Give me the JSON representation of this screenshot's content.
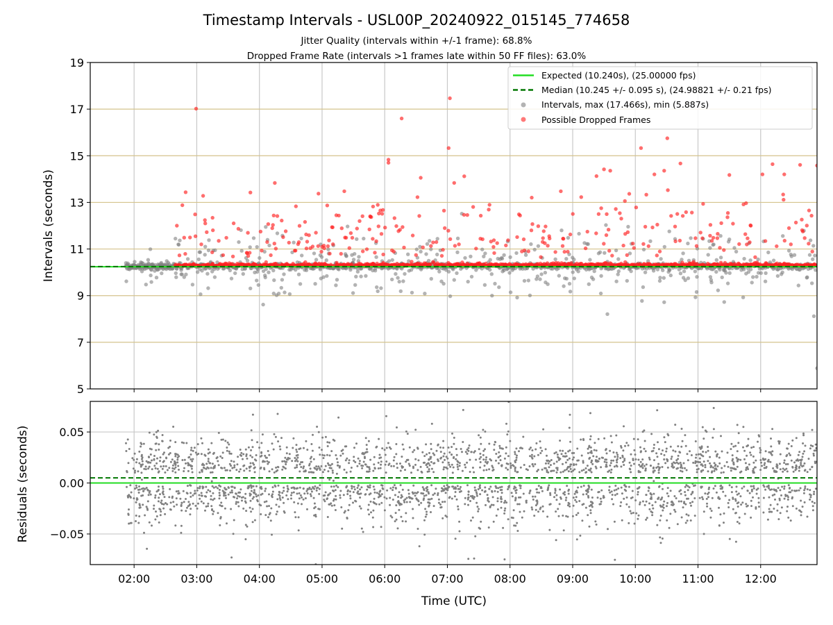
{
  "chart_data": [
    {
      "type": "scatter",
      "title": "Timestamp Intervals - USL00P_20240922_015145_774658",
      "subtitle_lines": [
        "Jitter Quality (intervals within +/-1 frame): 68.8%",
        "Dropped Frame Rate (intervals >1 frames late within 50 FF files): 63.0%"
      ],
      "ylabel": "Intervals (seconds)",
      "xlabel": "",
      "xlim_hours": [
        1.3,
        12.9
      ],
      "ylim": [
        5,
        19
      ],
      "yticks": [
        5,
        7,
        9,
        11,
        13,
        15,
        17,
        19
      ],
      "ytick_labels": [
        "5",
        "7",
        "9",
        "11",
        "13",
        "15",
        "17",
        "19"
      ],
      "hgrid_color": "#d4c38c",
      "reference_lines": [
        {
          "label": "Expected (10.240s), (25.00000 fps)",
          "value": 10.24,
          "style": "solid",
          "color": "#22dd22"
        },
        {
          "label": "Median (10.245 +/- 0.095 s), (24.98821 +/- 0.21 fps)",
          "value": 10.245,
          "style": "dashed",
          "color": "#007700"
        }
      ],
      "series": [
        {
          "name": "Intervals, max (17.466s), min (5.887s)",
          "color": "#808080",
          "max": 17.466,
          "min": 5.887
        },
        {
          "name": "Possible Dropped Frames",
          "color": "#ff2020"
        }
      ],
      "legend_position": "top-right",
      "x_start_hour": 1.87,
      "x_end_hour": 12.9,
      "notable_points": [
        {
          "x": 2.99,
          "y": 17.02,
          "series": "Possible Dropped Frames"
        },
        {
          "x": 7.04,
          "y": 17.466,
          "series": "Possible Dropped Frames"
        },
        {
          "x": 6.27,
          "y": 16.6,
          "series": "Possible Dropped Frames"
        },
        {
          "x": 10.51,
          "y": 15.75,
          "series": "Possible Dropped Frames"
        },
        {
          "x": 7.02,
          "y": 15.33,
          "series": "Possible Dropped Frames"
        },
        {
          "x": 10.09,
          "y": 15.33,
          "series": "Possible Dropped Frames"
        },
        {
          "x": 6.06,
          "y": 14.83,
          "series": "Possible Dropped Frames"
        },
        {
          "x": 6.06,
          "y": 14.7,
          "series": "Possible Dropped Frames"
        },
        {
          "x": 10.72,
          "y": 14.67,
          "series": "Possible Dropped Frames"
        },
        {
          "x": 12.19,
          "y": 14.64,
          "series": "Possible Dropped Frames"
        },
        {
          "x": 12.63,
          "y": 14.61,
          "series": "Possible Dropped Frames"
        },
        {
          "x": 12.9,
          "y": 14.58,
          "series": "Possible Dropped Frames"
        },
        {
          "x": 9.5,
          "y": 14.42,
          "series": "Possible Dropped Frames"
        },
        {
          "x": 9.6,
          "y": 14.36,
          "series": "Possible Dropped Frames"
        },
        {
          "x": 10.46,
          "y": 14.36,
          "series": "Possible Dropped Frames"
        },
        {
          "x": 7.27,
          "y": 14.12,
          "series": "Possible Dropped Frames"
        },
        {
          "x": 12.9,
          "y": 5.887,
          "series": "Intervals, max (17.466s), min (5.887s)"
        },
        {
          "x": 12.85,
          "y": 8.12,
          "series": "Intervals, max (17.466s), min (5.887s)"
        }
      ]
    },
    {
      "type": "scatter",
      "ylabel": "Residuals (seconds)",
      "xlabel": "Time (UTC)",
      "ylim": [
        -0.08,
        0.08
      ],
      "yticks": [
        -0.05,
        0.0,
        0.05
      ],
      "ytick_labels": [
        "−0.05",
        "0.00",
        "0.05"
      ],
      "xticks_hours": [
        2,
        3,
        4,
        5,
        6,
        7,
        8,
        9,
        10,
        11,
        12
      ],
      "xtick_labels": [
        "02:00",
        "03:00",
        "04:00",
        "05:00",
        "06:00",
        "07:00",
        "08:00",
        "09:00",
        "10:00",
        "11:00",
        "12:00"
      ],
      "reference_lines": [
        {
          "value": 0.0,
          "style": "solid",
          "color": "#22dd22"
        },
        {
          "value": 0.005,
          "style": "dashed",
          "color": "#007700"
        }
      ],
      "series": [
        {
          "name": "",
          "color": "#808080",
          "spread": 0.025
        }
      ]
    }
  ]
}
